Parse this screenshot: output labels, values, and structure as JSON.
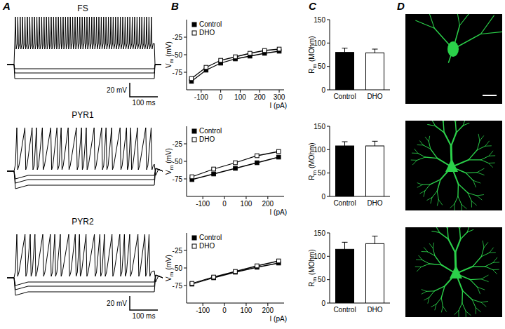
{
  "panel_labels": [
    "A",
    "B",
    "C",
    "D"
  ],
  "traces": {
    "labels": [
      "FS",
      "PYR1",
      "PYR2"
    ],
    "scale_bars": [
      {
        "voltage": "20 mV",
        "time": "100 ms"
      },
      {
        "voltage": "20 mV",
        "time": "100 ms"
      }
    ]
  },
  "chart_data": [
    {
      "type": "line",
      "x_label": "I (pA)",
      "y_label": "Vm (mV)",
      "x": [
        -150,
        -75,
        0,
        75,
        150,
        225,
        300
      ],
      "series": [
        {
          "name": "Control",
          "color": "#000000",
          "marker": "square",
          "line_style": "solid",
          "values": [
            -88,
            -72,
            -62,
            -56,
            -52,
            -48,
            -45
          ]
        },
        {
          "name": "DHO",
          "color": "#000000",
          "marker": "open-square",
          "line_style": "solid",
          "values": [
            -84,
            -68,
            -58,
            -53,
            -48,
            -44,
            -42
          ]
        }
      ],
      "xlim": [
        -175,
        325
      ],
      "ylim": [
        -100,
        0
      ],
      "xticks": [
        -100,
        0,
        100,
        200,
        300
      ],
      "yticks": [
        -75,
        -50,
        -25
      ],
      "legend": "top-left"
    },
    {
      "type": "line",
      "x_label": "I (pA)",
      "y_label": "Vm (mV)",
      "x": [
        -150,
        -50,
        50,
        150,
        250
      ],
      "series": [
        {
          "name": "Control",
          "color": "#000000",
          "marker": "square",
          "line_style": "solid",
          "values": [
            -76,
            -68,
            -60,
            -52,
            -44
          ]
        },
        {
          "name": "DHO",
          "color": "#000000",
          "marker": "open-square",
          "line_style": "solid",
          "values": [
            -72,
            -61,
            -52,
            -42,
            -36
          ]
        }
      ],
      "xlim": [
        -175,
        275
      ],
      "ylim": [
        -100,
        0
      ],
      "xticks": [
        -100,
        0,
        100,
        200
      ],
      "yticks": [
        -75,
        -50,
        -25
      ],
      "legend": "top-left"
    },
    {
      "type": "line",
      "x_label": "I (pA)",
      "y_label": "Vm (mV)",
      "x": [
        -150,
        -50,
        50,
        150,
        250
      ],
      "series": [
        {
          "name": "Control",
          "color": "#000000",
          "marker": "square",
          "line_style": "solid",
          "values": [
            -73,
            -64,
            -56,
            -49,
            -43
          ]
        },
        {
          "name": "DHO",
          "color": "#000000",
          "marker": "open-square",
          "line_style": "solid",
          "values": [
            -72,
            -63,
            -55,
            -47,
            -40
          ]
        }
      ],
      "xlim": [
        -175,
        275
      ],
      "ylim": [
        -100,
        0
      ],
      "xticks": [
        -100,
        0,
        100,
        200
      ],
      "yticks": [
        -75,
        -50,
        -25
      ],
      "legend": "top-left"
    },
    {
      "type": "bar",
      "y_label": "Rm (MOhm)",
      "categories": [
        "Control",
        "DHO"
      ],
      "values": [
        80,
        79
      ],
      "errors": [
        9,
        8
      ],
      "colors": [
        "#000000",
        "#ffffff"
      ],
      "ylim": [
        0,
        150
      ],
      "yticks": [
        0,
        50,
        100,
        150
      ]
    },
    {
      "type": "bar",
      "y_label": "Rm (MOhm)",
      "categories": [
        "Control",
        "DHO"
      ],
      "values": [
        108,
        108
      ],
      "errors": [
        9,
        10
      ],
      "colors": [
        "#000000",
        "#ffffff"
      ],
      "ylim": [
        0,
        150
      ],
      "yticks": [
        0,
        50,
        100,
        150
      ]
    },
    {
      "type": "bar",
      "y_label": "Rm (MOhm)",
      "categories": [
        "Control",
        "DHO"
      ],
      "values": [
        115,
        127
      ],
      "errors": [
        15,
        16
      ],
      "colors": [
        "#000000",
        "#ffffff"
      ],
      "ylim": [
        0,
        150
      ],
      "yticks": [
        0,
        50,
        100,
        150
      ]
    }
  ]
}
